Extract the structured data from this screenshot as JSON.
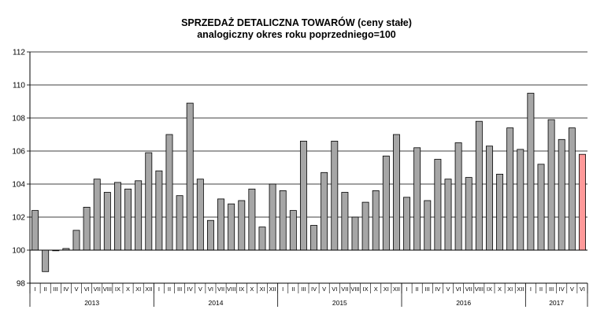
{
  "chart_data": {
    "type": "bar",
    "title": "SPRZEDAŻ DETALICZNA TOWARÓW  (ceny stałe)",
    "subtitle": "analogiczny okres roku poprzedniego=100",
    "xlabel": "",
    "ylabel": "",
    "ylim": [
      98,
      112
    ],
    "yticks": [
      "98",
      "100",
      "102",
      "104",
      "106",
      "108",
      "110",
      "112"
    ],
    "baseline": 100,
    "grid": true,
    "colors": {
      "bar": "#a6a6a6",
      "highlight": "#ff9999",
      "stroke": "#000000",
      "grid": "#000000"
    },
    "categories": [
      "I",
      "II",
      "III",
      "IV",
      "V",
      "VI",
      "VII",
      "VIII",
      "IX",
      "X",
      "XI",
      "XII",
      "I",
      "II",
      "III",
      "IV",
      "V",
      "VI",
      "VII",
      "VIII",
      "IX",
      "X",
      "XI",
      "XII",
      "I",
      "II",
      "III",
      "IV",
      "V",
      "VI",
      "VII",
      "VIII",
      "IX",
      "X",
      "XI",
      "XII",
      "I",
      "II",
      "III",
      "IV",
      "V",
      "VI",
      "VII",
      "VIII",
      "IX",
      "X",
      "XI",
      "XII",
      "I",
      "II",
      "III",
      "IV",
      "V",
      "VI"
    ],
    "years": [
      {
        "label": "2013",
        "months": 12
      },
      {
        "label": "2014",
        "months": 12
      },
      {
        "label": "2015",
        "months": 12
      },
      {
        "label": "2016",
        "months": 12
      },
      {
        "label": "2017",
        "months": 6
      }
    ],
    "values": [
      102.4,
      98.7,
      100.0,
      100.1,
      101.2,
      102.6,
      104.3,
      103.5,
      104.1,
      103.7,
      104.2,
      105.9,
      104.8,
      107.0,
      103.3,
      108.9,
      104.3,
      101.8,
      103.1,
      102.8,
      103.0,
      103.7,
      101.4,
      104.0,
      103.6,
      102.4,
      106.6,
      101.5,
      104.7,
      106.6,
      103.5,
      102.0,
      102.9,
      103.6,
      105.7,
      107.0,
      103.2,
      106.2,
      103.0,
      105.5,
      104.3,
      106.5,
      104.4,
      107.8,
      106.3,
      104.6,
      107.4,
      106.1,
      109.5,
      105.2,
      107.9,
      106.7,
      107.4,
      105.8
    ],
    "highlight_index": 53
  }
}
